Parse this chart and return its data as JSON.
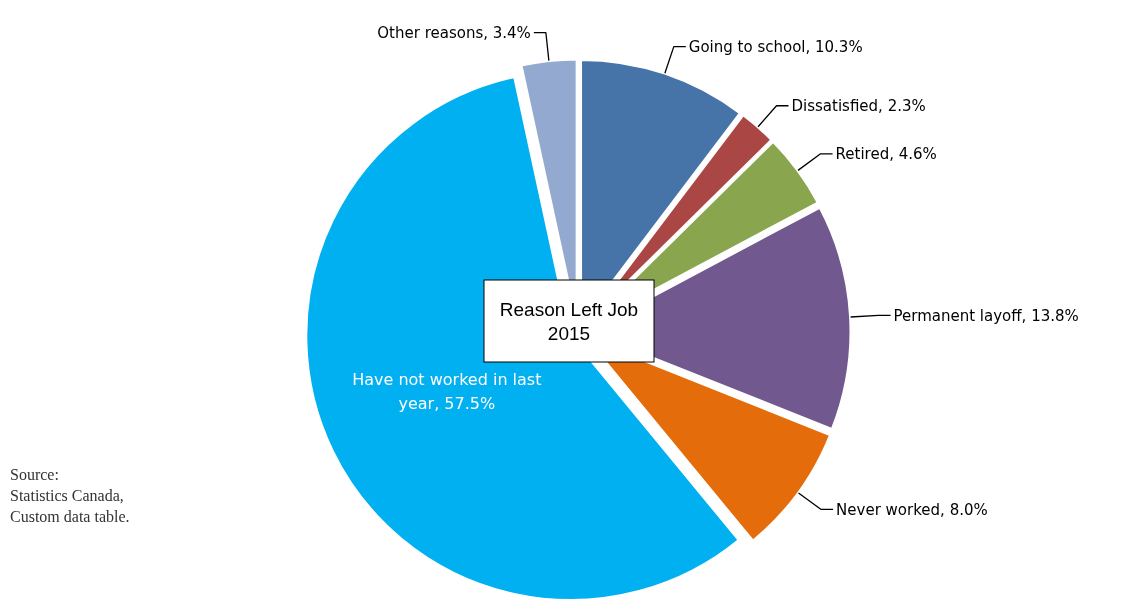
{
  "chart_data": {
    "type": "pie",
    "title": "Reason Left Job 2015",
    "categories": [
      "Going to school",
      "Dissatisfied",
      "Retired",
      "Permanent layoff",
      "Never worked",
      "Have not worked in last year",
      "Other reasons"
    ],
    "values": [
      10.3,
      2.3,
      4.6,
      13.8,
      8.0,
      57.5,
      3.4
    ],
    "value_labels": [
      "10.3%",
      "2.3%",
      "4.6%",
      "13.8%",
      "8.0%",
      "57.5%",
      "3.4%"
    ],
    "colors": [
      "#4674a8",
      "#aa4643",
      "#89a54e",
      "#71588f",
      "#e46c0a",
      "#00b0f0",
      "#93a9cf"
    ],
    "annotations": [
      "Source:\nStatistics Canada,\nCustom data table."
    ]
  }
}
